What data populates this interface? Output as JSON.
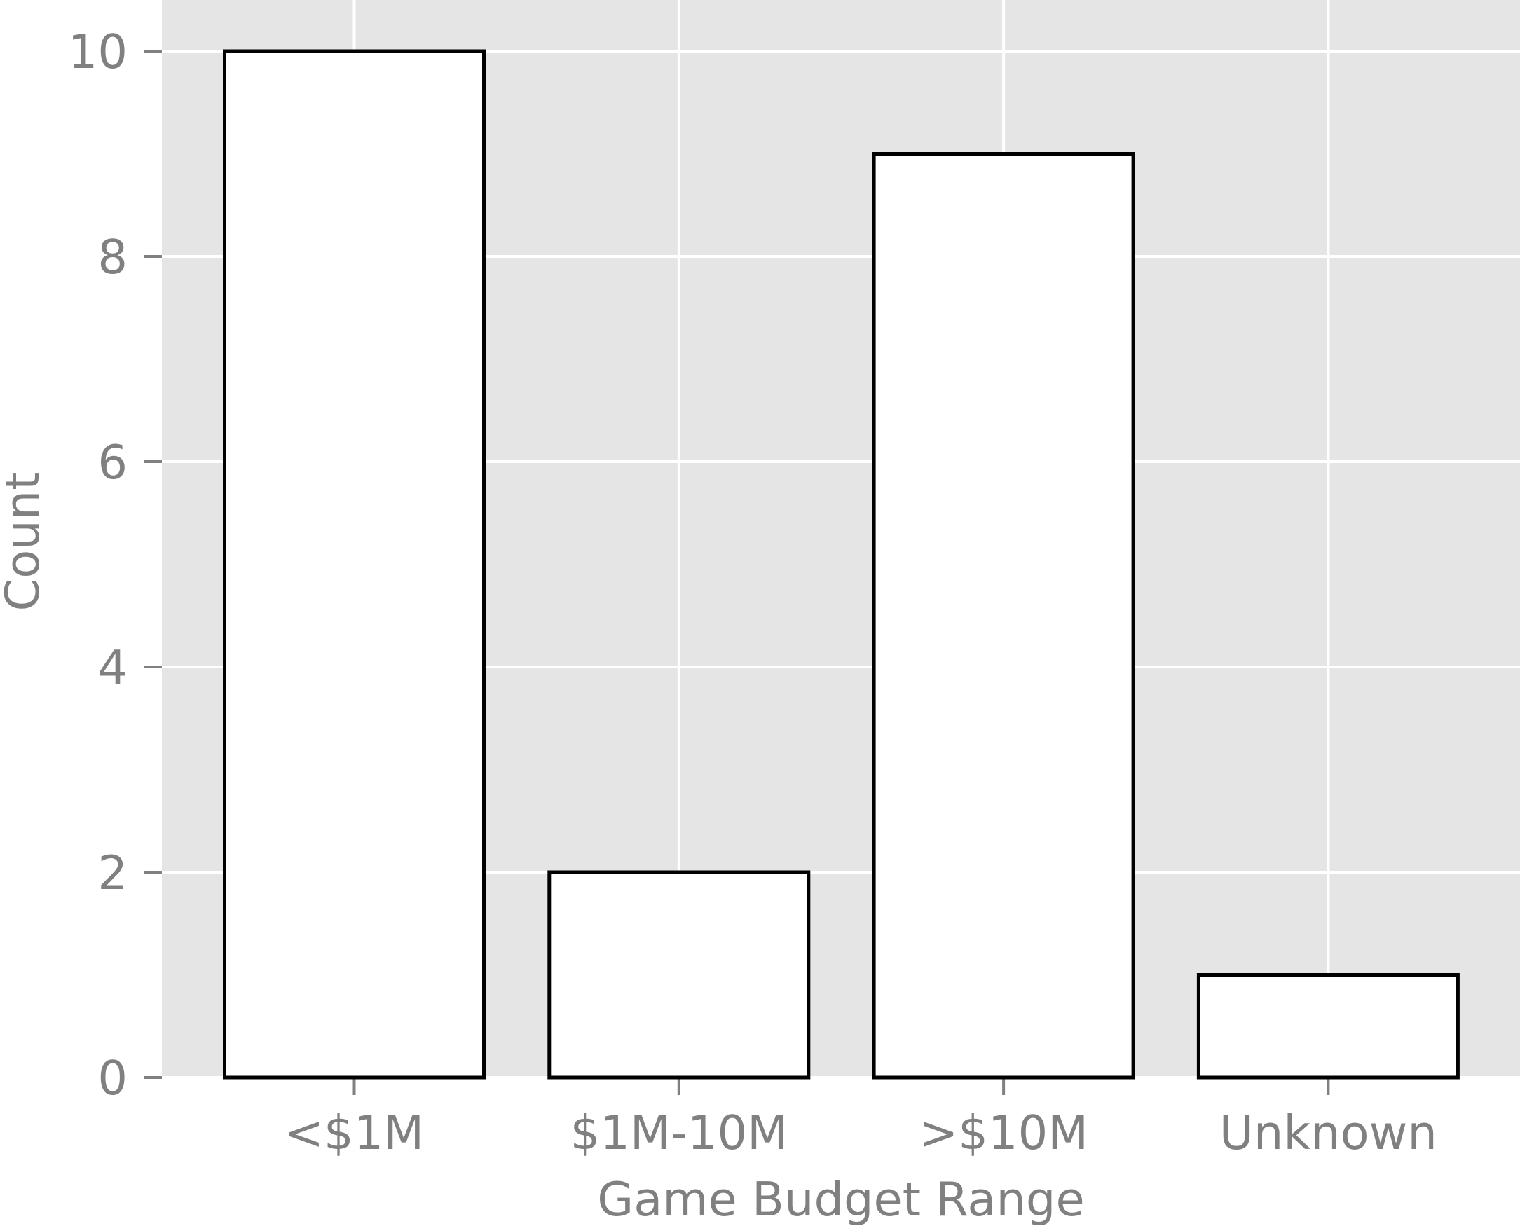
{
  "chart_data": {
    "type": "bar",
    "title": "",
    "xlabel": "Game Budget Range",
    "ylabel": "Count",
    "categories": [
      "<$1M",
      "$1M-10M",
      ">$10M",
      "Unknown"
    ],
    "values": [
      10,
      2,
      9,
      1
    ],
    "ylim": [
      0,
      10.5
    ],
    "yticks": [
      "0",
      "2",
      "4",
      "6",
      "8",
      "10"
    ],
    "grid": true,
    "legend": "none",
    "colors": {
      "plot_background": "#e5e5e5",
      "grid": "#ffffff",
      "bar_fill": "#ffffff",
      "bar_edge": "#000000",
      "text": "#808080"
    }
  }
}
